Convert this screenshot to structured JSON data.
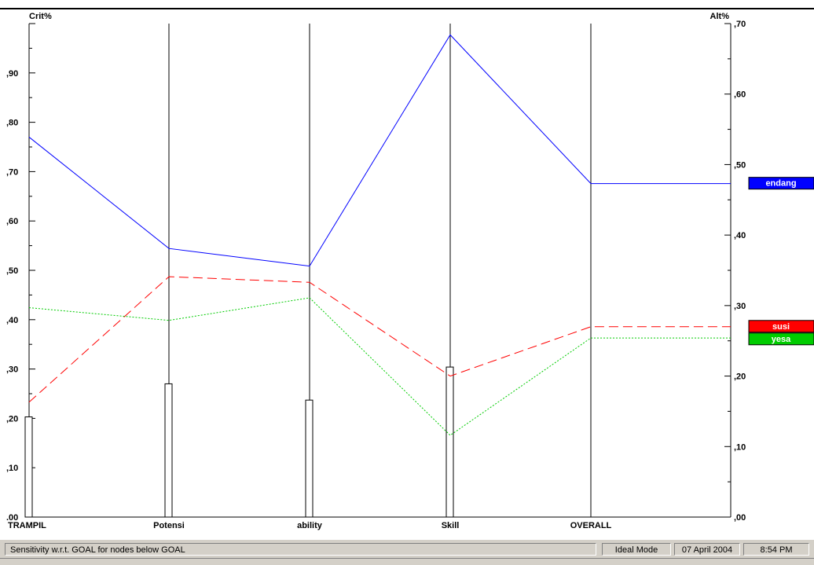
{
  "chart_data": {
    "type": "line",
    "left_axis_label": "Crit%",
    "right_axis_label": "Alt%",
    "left_ticks": [
      ".00",
      ",10",
      ",20",
      ",30",
      ",40",
      ",50",
      ",60",
      ",70",
      ",80",
      ",90"
    ],
    "right_ticks": [
      ",00",
      ",10",
      ",20",
      ",30",
      ",40",
      ",50",
      ",60",
      ",70"
    ],
    "left_ylim": [
      0,
      1
    ],
    "right_ylim": [
      0,
      0.7
    ],
    "categories": [
      "TRAMPIL",
      "Potensi",
      "ability",
      "Skill",
      "OVERALL"
    ],
    "criteria_bars": [
      0.203,
      0.27,
      0.237,
      0.304
    ],
    "series": [
      {
        "name": "endang",
        "color": "#0000ff",
        "dash": "solid",
        "values": [
          0.539,
          0.381,
          0.356,
          0.684,
          0.473
        ]
      },
      {
        "name": "susi",
        "color": "#ff0000",
        "dash": "long",
        "values": [
          0.163,
          0.341,
          0.333,
          0.2,
          0.27
        ]
      },
      {
        "name": "yesa",
        "color": "#00cc00",
        "dash": "dot",
        "values": [
          0.297,
          0.279,
          0.311,
          0.116,
          0.254
        ]
      }
    ],
    "grid": false,
    "legend_position": "right"
  },
  "status": {
    "message": "Sensitivity w.r.t. GOAL for nodes below GOAL",
    "mode": "Ideal Mode",
    "date": "07 April 2004",
    "time": "8:54 PM"
  }
}
